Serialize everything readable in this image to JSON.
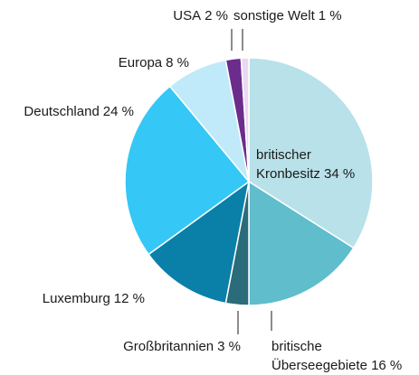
{
  "chart_data": {
    "type": "pie",
    "categories": [
      "britischer Kronbesitz",
      "britische Überseegebiete",
      "Großbritannien",
      "Luxemburg",
      "Deutschland",
      "Europa",
      "USA",
      "sonstige Welt"
    ],
    "values": [
      34,
      16,
      3,
      12,
      24,
      8,
      2,
      1
    ],
    "value_labels": [
      "34 %",
      "16 %",
      "3 %",
      "12 %",
      "24 %",
      "8 %",
      "2 %",
      "1 %"
    ],
    "colors": [
      "#b9e1e9",
      "#5fbdcc",
      "#2a6c79",
      "#0a80a9",
      "#35c7f5",
      "#c0eaf9",
      "#6b2c8c",
      "#ead9f1"
    ]
  }
}
